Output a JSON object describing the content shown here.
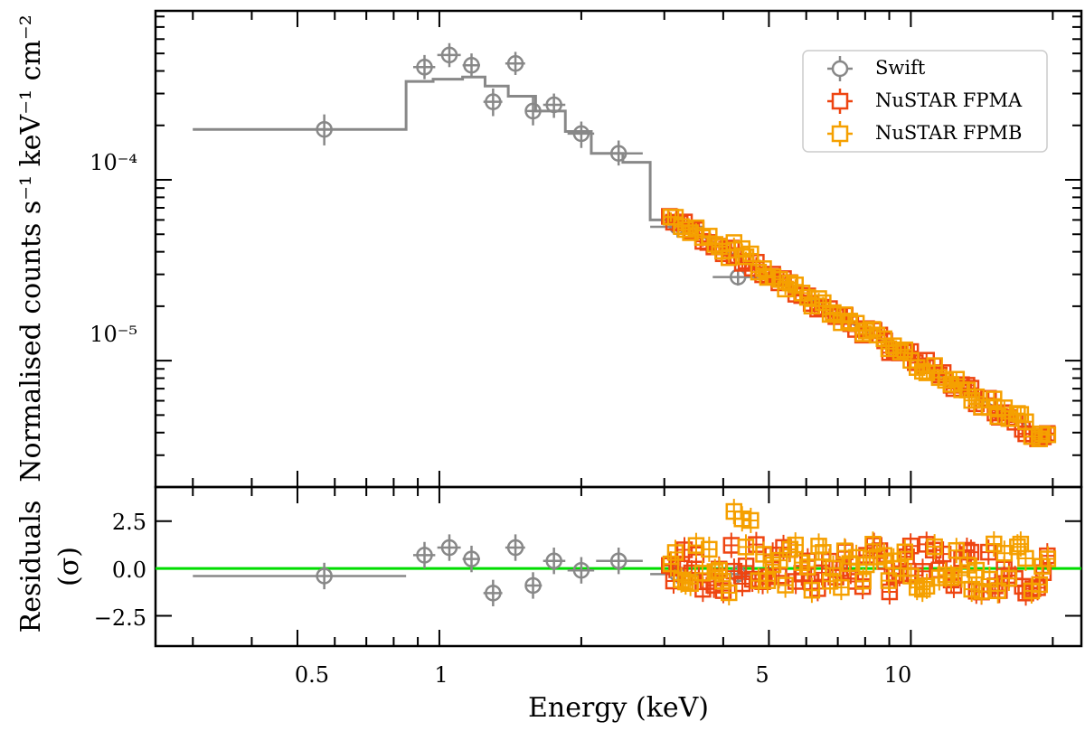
{
  "chart_data": {
    "type": "scatter",
    "xlabel": "Energy (keV)",
    "xscale": "log",
    "xlim": [
      0.25,
      23
    ],
    "xtick_labels": [
      "0.5",
      "1",
      "5",
      "10"
    ],
    "xticks": [
      0.5,
      1,
      5,
      10
    ],
    "panels": {
      "top": {
        "ylabel": "Normalised counts s⁻¹ keV⁻¹ cm⁻²",
        "yscale": "log",
        "ylim": [
          2e-06,
          0.00086
        ],
        "ytick_labels": [
          "10⁻⁴",
          "10⁻⁵"
        ],
        "yticks": [
          0.0001,
          1e-05
        ],
        "model": {
          "name": "model",
          "color": "#888888",
          "steps": [
            {
              "x0": 0.3,
              "x1": 0.85,
              "y": 0.00019
            },
            {
              "x0": 0.85,
              "x1": 0.97,
              "y": 0.00035
            },
            {
              "x0": 0.97,
              "x1": 1.12,
              "y": 0.00036
            },
            {
              "x0": 1.12,
              "x1": 1.25,
              "y": 0.00037
            },
            {
              "x0": 1.25,
              "x1": 1.4,
              "y": 0.00033
            },
            {
              "x0": 1.4,
              "x1": 1.6,
              "y": 0.00029
            },
            {
              "x0": 1.6,
              "x1": 1.85,
              "y": 0.00024
            },
            {
              "x0": 1.85,
              "x1": 2.1,
              "y": 0.000185
            },
            {
              "x0": 2.1,
              "x1": 2.45,
              "y": 0.00014
            },
            {
              "x0": 2.45,
              "x1": 2.8,
              "y": 0.000125
            },
            {
              "x0": 2.8,
              "x1": 3.15,
              "y": 6e-05
            }
          ],
          "powerlaw": {
            "from": [
              3.15,
              6e-05
            ],
            "to": [
              20,
              3.6e-06
            ]
          }
        }
      },
      "bottom": {
        "ylabel": "Residuals",
        "ylabel2": "(σ)",
        "ylim": [
          -4.1,
          4.3
        ],
        "ytick_labels": [
          "2.5",
          "0.0",
          "−2.5"
        ],
        "yticks": [
          2.5,
          0,
          -2.5
        ],
        "zero_line_color": "#00dd00"
      }
    },
    "series": [
      {
        "name": "Swift",
        "color": "#888888",
        "marker": "circle",
        "points": [
          {
            "x": 0.57,
            "xerr": [
              0.3,
              0.85
            ],
            "y": 0.00019,
            "yerr": [
              0.000155,
              0.00023
            ],
            "r": -0.4,
            "rerr": [
              -1.1,
              0.3
            ]
          },
          {
            "x": 0.93,
            "xerr": [
              0.88,
              0.98
            ],
            "y": 0.00042,
            "yerr": [
              0.00036,
              0.00049
            ],
            "r": 0.7,
            "rerr": [
              0.0,
              1.4
            ]
          },
          {
            "x": 1.05,
            "xerr": [
              0.99,
              1.11
            ],
            "y": 0.00049,
            "yerr": [
              0.00042,
              0.00057
            ],
            "r": 1.1,
            "rerr": [
              0.4,
              1.8
            ]
          },
          {
            "x": 1.17,
            "xerr": [
              1.12,
              1.22
            ],
            "y": 0.00043,
            "yerr": [
              0.00037,
              0.0005
            ],
            "r": 0.5,
            "rerr": [
              -0.2,
              1.2
            ]
          },
          {
            "x": 1.3,
            "xerr": [
              1.24,
              1.36
            ],
            "y": 0.00027,
            "yerr": [
              0.000225,
              0.00032
            ],
            "r": -1.3,
            "rerr": [
              -2.0,
              -0.6
            ]
          },
          {
            "x": 1.45,
            "xerr": [
              1.38,
              1.52
            ],
            "y": 0.00044,
            "yerr": [
              0.00038,
              0.00051
            ],
            "r": 1.1,
            "rerr": [
              0.4,
              1.8
            ]
          },
          {
            "x": 1.58,
            "xerr": [
              1.52,
              1.65
            ],
            "y": 0.00024,
            "yerr": [
              0.0002,
              0.000285
            ],
            "r": -0.9,
            "rerr": [
              -1.6,
              -0.2
            ]
          },
          {
            "x": 1.75,
            "xerr": [
              1.66,
              1.85
            ],
            "y": 0.00026,
            "yerr": [
              0.00022,
              0.0003
            ],
            "r": 0.4,
            "rerr": [
              -0.3,
              1.1
            ]
          },
          {
            "x": 2.0,
            "xerr": [
              1.87,
              2.13
            ],
            "y": 0.00018,
            "yerr": [
              0.00015,
              0.00021
            ],
            "r": -0.1,
            "rerr": [
              -0.8,
              0.6
            ]
          },
          {
            "x": 2.4,
            "xerr": [
              2.15,
              2.7
            ],
            "y": 0.00014,
            "yerr": [
              0.00012,
              0.000165
            ],
            "r": 0.4,
            "rerr": [
              -0.3,
              1.1
            ]
          },
          {
            "x": 3.2,
            "xerr": [
              2.8,
              3.65
            ],
            "y": 5.5e-05,
            "yerr": [
              4.8e-05,
              6.3e-05
            ],
            "r": -0.3,
            "rerr": [
              -0.8,
              0.2
            ]
          },
          {
            "x": 4.3,
            "xerr": [
              3.8,
              4.9
            ],
            "y": 2.9e-05,
            "yerr": [
              2.6e-05,
              3.2e-05
            ],
            "r": -0.3,
            "rerr": [
              -0.8,
              0.2
            ]
          }
        ]
      },
      {
        "name": "NuSTAR FPMA",
        "color": "#ee4411",
        "marker": "square",
        "model_norm": 1.0,
        "points_seed": 7
      },
      {
        "name": "NuSTAR FPMB",
        "color": "#f5a000",
        "marker": "square",
        "model_norm": 1.0,
        "points_seed": 19
      }
    ],
    "legend": {
      "position": "top-right",
      "entries": [
        "Swift",
        "NuSTAR FPMA",
        "NuSTAR FPMB"
      ]
    }
  }
}
